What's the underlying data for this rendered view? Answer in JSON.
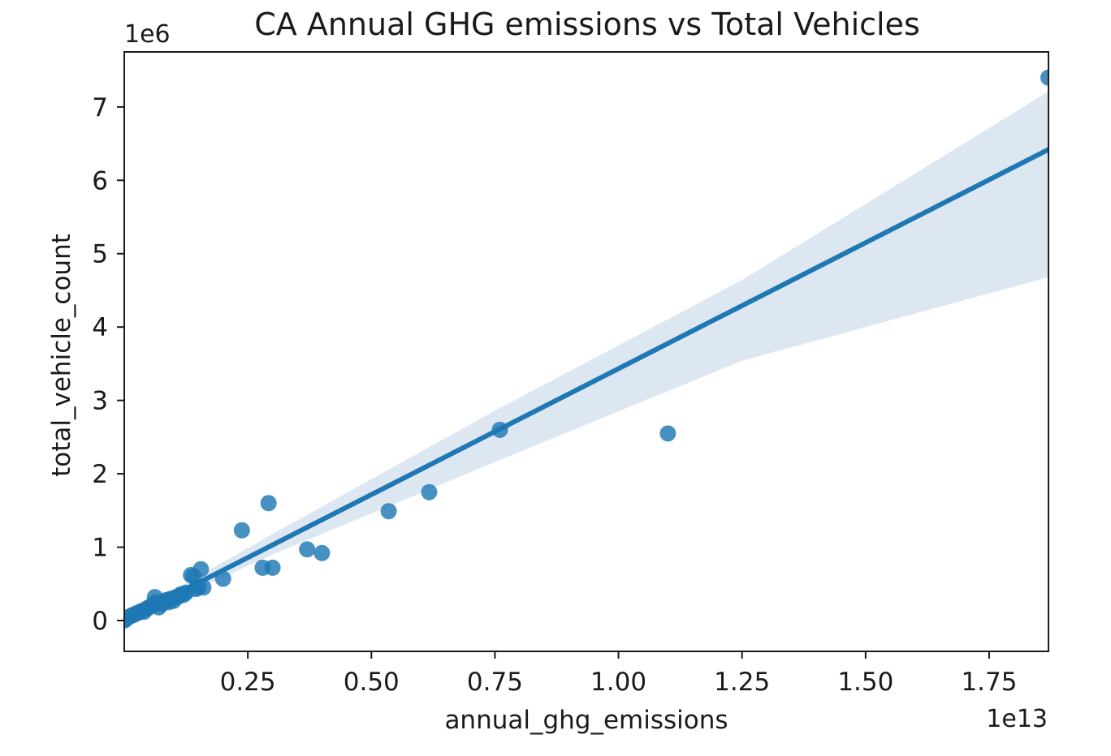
{
  "chart_data": {
    "type": "scatter",
    "title": "CA Annual GHG emissions vs Total Vehicles",
    "xlabel": "annual_ghg_emissions",
    "ylabel": "total_vehicle_count",
    "x_offset_label": "1e13",
    "y_offset_label": "1e6",
    "x_multiplier": 10000000000000.0,
    "y_multiplier": 1000000.0,
    "xlim": [
      0,
      1.87
    ],
    "ylim": [
      -0.42,
      7.75
    ],
    "x_ticks": [
      0.25,
      0.5,
      0.75,
      1.0,
      1.25,
      1.5,
      1.75
    ],
    "x_tick_labels": [
      "0.25",
      "0.50",
      "0.75",
      "1.00",
      "1.25",
      "1.50",
      "1.75"
    ],
    "y_ticks": [
      0,
      1,
      2,
      3,
      4,
      5,
      6,
      7
    ],
    "y_tick_labels": [
      "0",
      "1",
      "2",
      "3",
      "4",
      "5",
      "6",
      "7"
    ],
    "grid": false,
    "colors": {
      "points": "#1f77b4",
      "line": "#1f77b4",
      "band": "#dde7f2"
    },
    "series": [
      {
        "points": [
          [
            0.0,
            0.0
          ],
          [
            0.003,
            0.02
          ],
          [
            0.006,
            0.04
          ],
          [
            0.01,
            0.05
          ],
          [
            0.015,
            0.07
          ],
          [
            0.02,
            0.08
          ],
          [
            0.025,
            0.1
          ],
          [
            0.03,
            0.11
          ],
          [
            0.035,
            0.13
          ],
          [
            0.04,
            0.12
          ],
          [
            0.045,
            0.16
          ],
          [
            0.05,
            0.18
          ],
          [
            0.055,
            0.2
          ],
          [
            0.06,
            0.22
          ],
          [
            0.065,
            0.25
          ],
          [
            0.07,
            0.18
          ],
          [
            0.075,
            0.22
          ],
          [
            0.08,
            0.25
          ],
          [
            0.085,
            0.28
          ],
          [
            0.09,
            0.25
          ],
          [
            0.095,
            0.3
          ],
          [
            0.1,
            0.27
          ],
          [
            0.105,
            0.32
          ],
          [
            0.11,
            0.33
          ],
          [
            0.115,
            0.36
          ],
          [
            0.12,
            0.35
          ],
          [
            0.125,
            0.38
          ],
          [
            0.062,
            0.32
          ],
          [
            0.135,
            0.62
          ],
          [
            0.14,
            0.6
          ],
          [
            0.145,
            0.43
          ],
          [
            0.15,
            0.45
          ],
          [
            0.155,
            0.7
          ],
          [
            0.16,
            0.45
          ],
          [
            0.2,
            0.57
          ],
          [
            0.238,
            1.23
          ],
          [
            0.28,
            0.72
          ],
          [
            0.292,
            1.6
          ],
          [
            0.3,
            0.72
          ],
          [
            0.37,
            0.97
          ],
          [
            0.4,
            0.92
          ],
          [
            0.535,
            1.49
          ],
          [
            0.617,
            1.75
          ],
          [
            0.76,
            2.6
          ],
          [
            1.1,
            2.55
          ],
          [
            1.87,
            7.4
          ]
        ]
      }
    ],
    "regression": {
      "x": [
        0.0,
        1.87
      ],
      "y": [
        0.0,
        6.42
      ]
    },
    "ci_band": {
      "x": [
        0.0,
        0.3,
        0.75,
        1.25,
        1.87
      ],
      "upper": [
        0.03,
        1.18,
        2.86,
        4.64,
        7.21
      ],
      "lower": [
        -0.03,
        0.9,
        2.16,
        3.54,
        4.68
      ]
    }
  }
}
